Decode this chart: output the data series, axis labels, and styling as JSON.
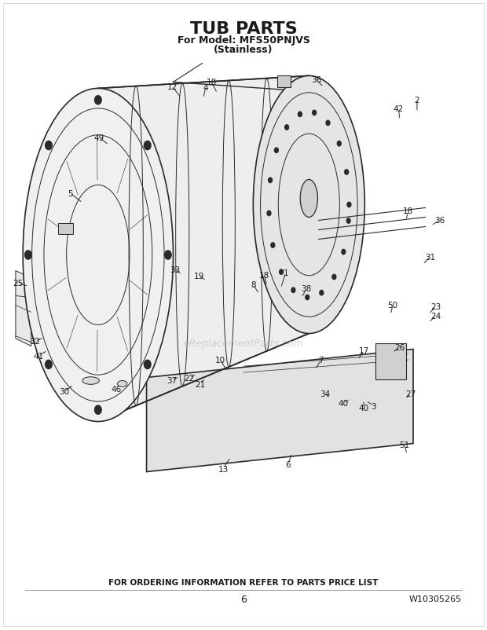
{
  "title": "TUB PARTS",
  "subtitle1": "For Model: MFS50PNJVS",
  "subtitle2": "(Stainless)",
  "footer_text": "FOR ORDERING INFORMATION REFER TO PARTS PRICE LIST",
  "page_num": "6",
  "part_num": "W10305265",
  "bg_color": "#ffffff",
  "line_color": "#2a2a2a",
  "text_color": "#1a1a1a",
  "watermark": "eReplacementParts.com"
}
